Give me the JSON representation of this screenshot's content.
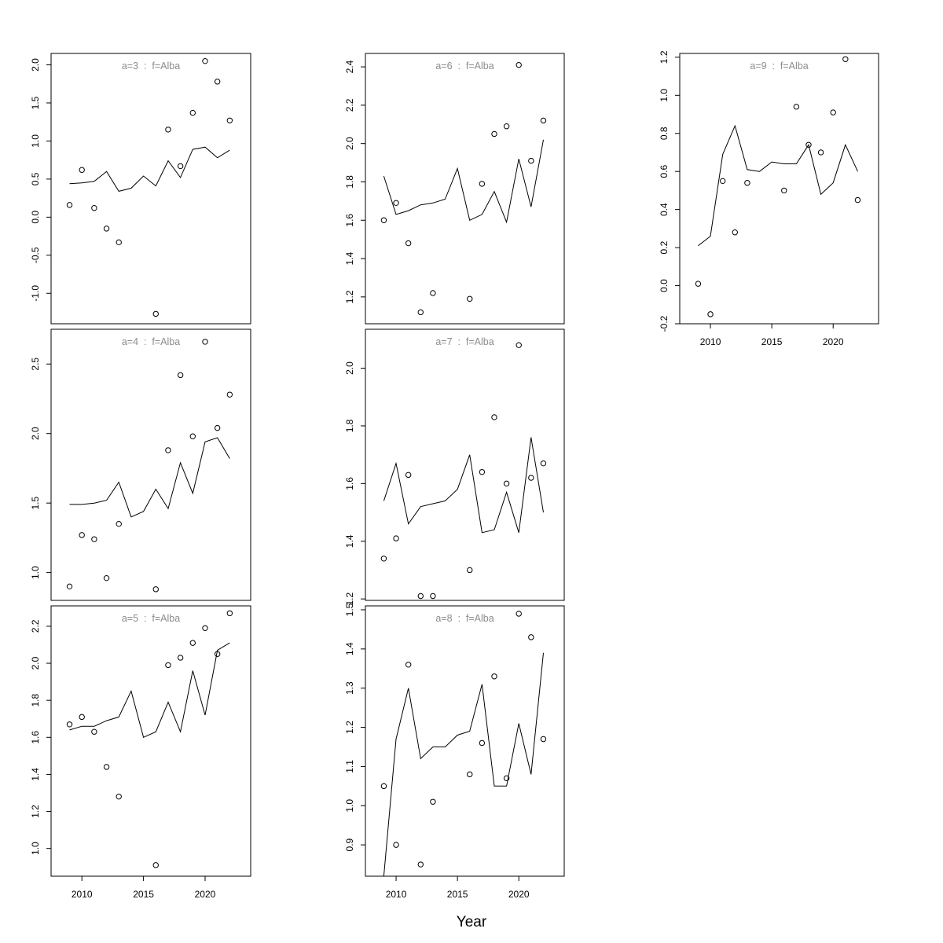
{
  "chart_data": {
    "type": "scatter",
    "xlabel": "Year",
    "x": [
      2009,
      2010,
      2011,
      2012,
      2013,
      2014,
      2015,
      2016,
      2017,
      2018,
      2019,
      2020,
      2021,
      2022
    ],
    "xticks": [
      2010,
      2015,
      2020
    ],
    "xlim": [
      2007.5,
      2023.7
    ],
    "panels": [
      {
        "title": "a=3  :  f=Alba",
        "ylim": [
          -1.4,
          2.15
        ],
        "yticks": [
          -1.0,
          -0.5,
          0.0,
          0.5,
          1.0,
          1.5,
          2.0
        ],
        "ytick_labels": [
          "-1.0",
          "-0.5",
          "0.0",
          "0.5",
          "1.0",
          "1.5",
          "2.0"
        ],
        "observed": [
          [
            2009,
            0.16
          ],
          [
            2010,
            0.62
          ],
          [
            2011,
            0.12
          ],
          [
            2012,
            -0.15
          ],
          [
            2013,
            -0.33
          ],
          [
            2016,
            -1.27
          ],
          [
            2017,
            1.15
          ],
          [
            2018,
            0.67
          ],
          [
            2019,
            1.37
          ],
          [
            2020,
            2.05
          ],
          [
            2021,
            1.78
          ],
          [
            2022,
            1.27
          ]
        ],
        "fitted": [
          0.44,
          0.45,
          0.47,
          0.6,
          0.34,
          0.38,
          0.54,
          0.41,
          0.74,
          0.52,
          0.89,
          0.92,
          0.78,
          0.88
        ]
      },
      {
        "title": "a=4  :  f=Alba",
        "ylim": [
          0.8,
          2.75
        ],
        "yticks": [
          1.0,
          1.5,
          2.0,
          2.5
        ],
        "ytick_labels": [
          "1.0",
          "1.5",
          "2.0",
          "2.5"
        ],
        "observed": [
          [
            2009,
            0.9
          ],
          [
            2010,
            1.27
          ],
          [
            2011,
            1.24
          ],
          [
            2012,
            0.96
          ],
          [
            2013,
            1.35
          ],
          [
            2016,
            0.88
          ],
          [
            2017,
            1.88
          ],
          [
            2018,
            2.42
          ],
          [
            2019,
            1.98
          ],
          [
            2020,
            2.66
          ],
          [
            2021,
            2.04
          ],
          [
            2022,
            2.28
          ]
        ],
        "fitted": [
          1.49,
          1.49,
          1.5,
          1.52,
          1.65,
          1.4,
          1.44,
          1.6,
          1.46,
          1.79,
          1.57,
          1.94,
          1.97,
          1.82
        ]
      },
      {
        "title": "a=5  :  f=Alba",
        "ylim": [
          0.85,
          2.31
        ],
        "yticks": [
          1.0,
          1.2,
          1.4,
          1.6,
          1.8,
          2.0,
          2.2
        ],
        "ytick_labels": [
          "1.0",
          "1.2",
          "1.4",
          "1.6",
          "1.8",
          "2.0",
          "2.2"
        ],
        "observed": [
          [
            2009,
            1.67
          ],
          [
            2010,
            1.71
          ],
          [
            2011,
            1.63
          ],
          [
            2012,
            1.44
          ],
          [
            2013,
            1.28
          ],
          [
            2016,
            0.91
          ],
          [
            2017,
            1.99
          ],
          [
            2018,
            2.03
          ],
          [
            2019,
            2.11
          ],
          [
            2020,
            2.19
          ],
          [
            2021,
            2.05
          ],
          [
            2022,
            2.27
          ]
        ],
        "fitted": [
          1.64,
          1.66,
          1.66,
          1.69,
          1.71,
          1.85,
          1.6,
          1.63,
          1.79,
          1.63,
          1.96,
          1.72,
          2.07,
          2.11
        ]
      },
      {
        "title": "a=6  :  f=Alba",
        "ylim": [
          1.06,
          2.47
        ],
        "yticks": [
          1.2,
          1.4,
          1.6,
          1.8,
          2.0,
          2.2,
          2.4
        ],
        "ytick_labels": [
          "1.2",
          "1.4",
          "1.6",
          "1.8",
          "2.0",
          "2.2",
          "2.4"
        ],
        "observed": [
          [
            2009,
            1.6
          ],
          [
            2010,
            1.69
          ],
          [
            2011,
            1.48
          ],
          [
            2012,
            1.12
          ],
          [
            2013,
            1.22
          ],
          [
            2016,
            1.19
          ],
          [
            2017,
            1.79
          ],
          [
            2018,
            2.05
          ],
          [
            2019,
            2.09
          ],
          [
            2020,
            2.41
          ],
          [
            2021,
            1.91
          ],
          [
            2022,
            2.12
          ]
        ],
        "fitted": [
          1.83,
          1.63,
          1.65,
          1.68,
          1.69,
          1.71,
          1.87,
          1.6,
          1.63,
          1.75,
          1.59,
          1.92,
          1.67,
          2.02
        ]
      },
      {
        "title": "a=7  :  f=Alba",
        "ylim": [
          1.195,
          2.135
        ],
        "yticks": [
          1.2,
          1.4,
          1.6,
          1.8,
          2.0
        ],
        "ytick_labels": [
          "1.2",
          "1.4",
          "1.6",
          "1.8",
          "2.0"
        ],
        "observed": [
          [
            2009,
            1.34
          ],
          [
            2010,
            1.41
          ],
          [
            2011,
            1.63
          ],
          [
            2012,
            1.21
          ],
          [
            2013,
            1.21
          ],
          [
            2016,
            1.3
          ],
          [
            2017,
            1.64
          ],
          [
            2018,
            1.83
          ],
          [
            2019,
            1.6
          ],
          [
            2020,
            2.08
          ],
          [
            2021,
            1.62
          ],
          [
            2022,
            1.67
          ]
        ],
        "fitted": [
          1.54,
          1.67,
          1.46,
          1.52,
          1.53,
          1.54,
          1.58,
          1.7,
          1.43,
          1.44,
          1.57,
          1.43,
          1.76,
          1.5
        ]
      },
      {
        "title": "a=8  :  f=Alba",
        "ylim": [
          0.82,
          1.51
        ],
        "yticks": [
          0.9,
          1.0,
          1.1,
          1.2,
          1.3,
          1.4,
          1.5
        ],
        "ytick_labels": [
          "0.9",
          "1.0",
          "1.1",
          "1.2",
          "1.3",
          "1.4",
          "1.5"
        ],
        "observed": [
          [
            2009,
            1.05
          ],
          [
            2010,
            0.9
          ],
          [
            2011,
            1.36
          ],
          [
            2012,
            0.85
          ],
          [
            2013,
            1.01
          ],
          [
            2016,
            1.08
          ],
          [
            2017,
            1.16
          ],
          [
            2018,
            1.33
          ],
          [
            2019,
            1.07
          ],
          [
            2020,
            1.49
          ],
          [
            2021,
            1.43
          ],
          [
            2022,
            1.17
          ]
        ],
        "fitted": [
          0.82,
          1.17,
          1.3,
          1.12,
          1.15,
          1.15,
          1.18,
          1.19,
          1.31,
          1.05,
          1.05,
          1.21,
          1.08,
          1.39
        ]
      },
      {
        "title": "a=9  :  f=Alba",
        "ylim": [
          -0.2,
          1.22
        ],
        "yticks": [
          -0.2,
          0.0,
          0.2,
          0.4,
          0.6,
          0.8,
          1.0,
          1.2
        ],
        "ytick_labels": [
          "-0.2",
          "0.0",
          "0.2",
          "0.4",
          "0.6",
          "0.8",
          "1.0",
          "1.2"
        ],
        "observed": [
          [
            2009,
            0.01
          ],
          [
            2010,
            -0.15
          ],
          [
            2011,
            0.55
          ],
          [
            2012,
            0.28
          ],
          [
            2013,
            0.54
          ],
          [
            2016,
            0.5
          ],
          [
            2017,
            0.94
          ],
          [
            2018,
            0.74
          ],
          [
            2019,
            0.7
          ],
          [
            2020,
            0.91
          ],
          [
            2021,
            1.19
          ],
          [
            2022,
            0.45
          ]
        ],
        "fitted": [
          0.21,
          0.26,
          0.69,
          0.84,
          0.61,
          0.6,
          0.65,
          0.64,
          0.64,
          0.74,
          0.48,
          0.54,
          0.74,
          0.6
        ]
      }
    ]
  }
}
